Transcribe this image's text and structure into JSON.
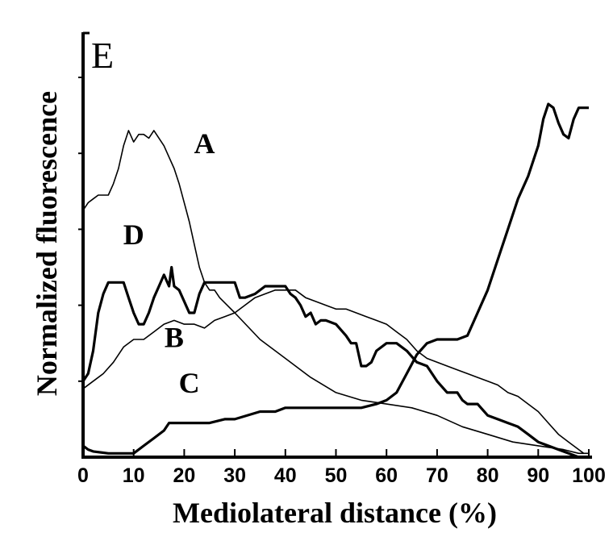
{
  "chart_data": {
    "type": "line",
    "panel_label": "E",
    "xlabel": "Mediolateral distance (%)",
    "ylabel": "Normalized fluorescence",
    "xlim": [
      0,
      100
    ],
    "x_ticks": [
      0,
      10,
      20,
      30,
      40,
      50,
      60,
      70,
      80,
      90,
      100
    ],
    "x_tick_labels": [
      "0",
      "10",
      "20",
      "30",
      "40",
      "50",
      "60",
      "70",
      "80",
      "90",
      "100"
    ],
    "ylim": [
      0,
      100
    ],
    "y_tick_values": [
      20,
      40,
      60,
      80,
      100
    ],
    "grid": false,
    "colors": {
      "ink": "#000000",
      "background": "#ffffff"
    },
    "series": [
      {
        "name": "A",
        "width": "thin",
        "points": [
          [
            0,
            65
          ],
          [
            1,
            67
          ],
          [
            2,
            68
          ],
          [
            3,
            69
          ],
          [
            4,
            69
          ],
          [
            5,
            69
          ],
          [
            6,
            72
          ],
          [
            7,
            76
          ],
          [
            8,
            82
          ],
          [
            9,
            86
          ],
          [
            10,
            83
          ],
          [
            11,
            85
          ],
          [
            12,
            85
          ],
          [
            13,
            84
          ],
          [
            14,
            86
          ],
          [
            15,
            84
          ],
          [
            16,
            82
          ],
          [
            17,
            79
          ],
          [
            18,
            76
          ],
          [
            19,
            72
          ],
          [
            20,
            67
          ],
          [
            21,
            62
          ],
          [
            22,
            56
          ],
          [
            23,
            50
          ],
          [
            24,
            46
          ],
          [
            25,
            44
          ],
          [
            26,
            44
          ],
          [
            27,
            42
          ],
          [
            30,
            38
          ],
          [
            35,
            31
          ],
          [
            40,
            26
          ],
          [
            45,
            21
          ],
          [
            50,
            17
          ],
          [
            55,
            15
          ],
          [
            60,
            14
          ],
          [
            65,
            13
          ],
          [
            70,
            11
          ],
          [
            75,
            8
          ],
          [
            80,
            6
          ],
          [
            85,
            4
          ],
          [
            90,
            3
          ],
          [
            95,
            2
          ],
          [
            98,
            1
          ],
          [
            100,
            1
          ]
        ]
      },
      {
        "name": "B",
        "width": "thin",
        "points": [
          [
            0,
            18
          ],
          [
            2,
            20
          ],
          [
            4,
            22
          ],
          [
            6,
            25
          ],
          [
            8,
            29
          ],
          [
            10,
            31
          ],
          [
            12,
            31
          ],
          [
            14,
            33
          ],
          [
            16,
            35
          ],
          [
            18,
            36
          ],
          [
            20,
            35
          ],
          [
            22,
            35
          ],
          [
            24,
            34
          ],
          [
            26,
            36
          ],
          [
            28,
            37
          ],
          [
            30,
            38
          ],
          [
            32,
            40
          ],
          [
            34,
            42
          ],
          [
            36,
            43
          ],
          [
            38,
            44
          ],
          [
            40,
            44
          ],
          [
            42,
            44
          ],
          [
            44,
            42
          ],
          [
            46,
            41
          ],
          [
            48,
            40
          ],
          [
            50,
            39
          ],
          [
            52,
            39
          ],
          [
            54,
            38
          ],
          [
            56,
            37
          ],
          [
            58,
            36
          ],
          [
            60,
            35
          ],
          [
            62,
            33
          ],
          [
            64,
            31
          ],
          [
            66,
            28
          ],
          [
            68,
            26
          ],
          [
            70,
            25
          ],
          [
            72,
            24
          ],
          [
            74,
            23
          ],
          [
            76,
            22
          ],
          [
            78,
            21
          ],
          [
            80,
            20
          ],
          [
            82,
            19
          ],
          [
            84,
            17
          ],
          [
            86,
            16
          ],
          [
            88,
            14
          ],
          [
            90,
            12
          ],
          [
            92,
            9
          ],
          [
            94,
            6
          ],
          [
            96,
            4
          ],
          [
            98,
            2
          ],
          [
            99,
            1
          ]
        ]
      },
      {
        "name": "C",
        "width": "thick",
        "points": [
          [
            0,
            3
          ],
          [
            1,
            2
          ],
          [
            2,
            1.5
          ],
          [
            5,
            1
          ],
          [
            10,
            1
          ],
          [
            12,
            3
          ],
          [
            14,
            5
          ],
          [
            16,
            7
          ],
          [
            17,
            9
          ],
          [
            20,
            9
          ],
          [
            25,
            9
          ],
          [
            28,
            10
          ],
          [
            30,
            10
          ],
          [
            35,
            12
          ],
          [
            38,
            12
          ],
          [
            40,
            13
          ],
          [
            45,
            13
          ],
          [
            50,
            13
          ],
          [
            55,
            13
          ],
          [
            58,
            14
          ],
          [
            60,
            15
          ],
          [
            62,
            17
          ],
          [
            64,
            22
          ],
          [
            66,
            27
          ],
          [
            68,
            30
          ],
          [
            70,
            31
          ],
          [
            74,
            31
          ],
          [
            76,
            32
          ],
          [
            78,
            38
          ],
          [
            80,
            44
          ],
          [
            82,
            52
          ],
          [
            84,
            60
          ],
          [
            86,
            68
          ],
          [
            88,
            74
          ],
          [
            90,
            82
          ],
          [
            91,
            89
          ],
          [
            92,
            93
          ],
          [
            93,
            92
          ],
          [
            94,
            88
          ],
          [
            95,
            85
          ],
          [
            96,
            84
          ],
          [
            97,
            89
          ],
          [
            98,
            92
          ],
          [
            99,
            92
          ],
          [
            100,
            92
          ]
        ]
      },
      {
        "name": "D",
        "width": "thick",
        "points": [
          [
            0,
            20
          ],
          [
            1,
            22
          ],
          [
            2,
            28
          ],
          [
            3,
            38
          ],
          [
            4,
            43
          ],
          [
            5,
            46
          ],
          [
            6,
            46
          ],
          [
            8,
            46
          ],
          [
            9,
            42
          ],
          [
            10,
            38
          ],
          [
            11,
            35
          ],
          [
            12,
            35
          ],
          [
            13,
            38
          ],
          [
            14,
            42
          ],
          [
            15,
            45
          ],
          [
            16,
            48
          ],
          [
            17,
            45
          ],
          [
            17.5,
            50
          ],
          [
            18,
            45
          ],
          [
            19,
            44
          ],
          [
            20,
            41
          ],
          [
            21,
            38
          ],
          [
            22,
            38
          ],
          [
            23,
            43
          ],
          [
            24,
            46
          ],
          [
            26,
            46
          ],
          [
            28,
            46
          ],
          [
            30,
            46
          ],
          [
            31,
            42
          ],
          [
            32,
            42
          ],
          [
            34,
            43
          ],
          [
            36,
            45
          ],
          [
            40,
            45
          ],
          [
            41,
            43
          ],
          [
            42,
            42
          ],
          [
            43,
            40
          ],
          [
            44,
            37
          ],
          [
            45,
            38
          ],
          [
            46,
            35
          ],
          [
            47,
            36
          ],
          [
            48,
            36
          ],
          [
            50,
            35
          ],
          [
            52,
            32
          ],
          [
            53,
            30
          ],
          [
            54,
            30
          ],
          [
            55,
            24
          ],
          [
            56,
            24
          ],
          [
            57,
            25
          ],
          [
            58,
            28
          ],
          [
            60,
            30
          ],
          [
            62,
            30
          ],
          [
            64,
            28
          ],
          [
            66,
            25
          ],
          [
            68,
            24
          ],
          [
            70,
            20
          ],
          [
            72,
            17
          ],
          [
            74,
            17
          ],
          [
            75,
            15
          ],
          [
            76,
            14
          ],
          [
            78,
            14
          ],
          [
            80,
            11
          ],
          [
            82,
            10
          ],
          [
            84,
            9
          ],
          [
            86,
            8
          ],
          [
            88,
            6
          ],
          [
            90,
            4
          ],
          [
            92,
            3
          ],
          [
            94,
            2
          ],
          [
            96,
            1
          ],
          [
            98,
            0
          ],
          [
            100,
            0
          ]
        ]
      }
    ],
    "annotations": [
      {
        "text": "A",
        "x": 24,
        "y": 80
      },
      {
        "text": "B",
        "x": 18,
        "y": 29
      },
      {
        "text": "C",
        "x": 21,
        "y": 17
      },
      {
        "text": "D",
        "x": 10,
        "y": 56
      }
    ]
  }
}
